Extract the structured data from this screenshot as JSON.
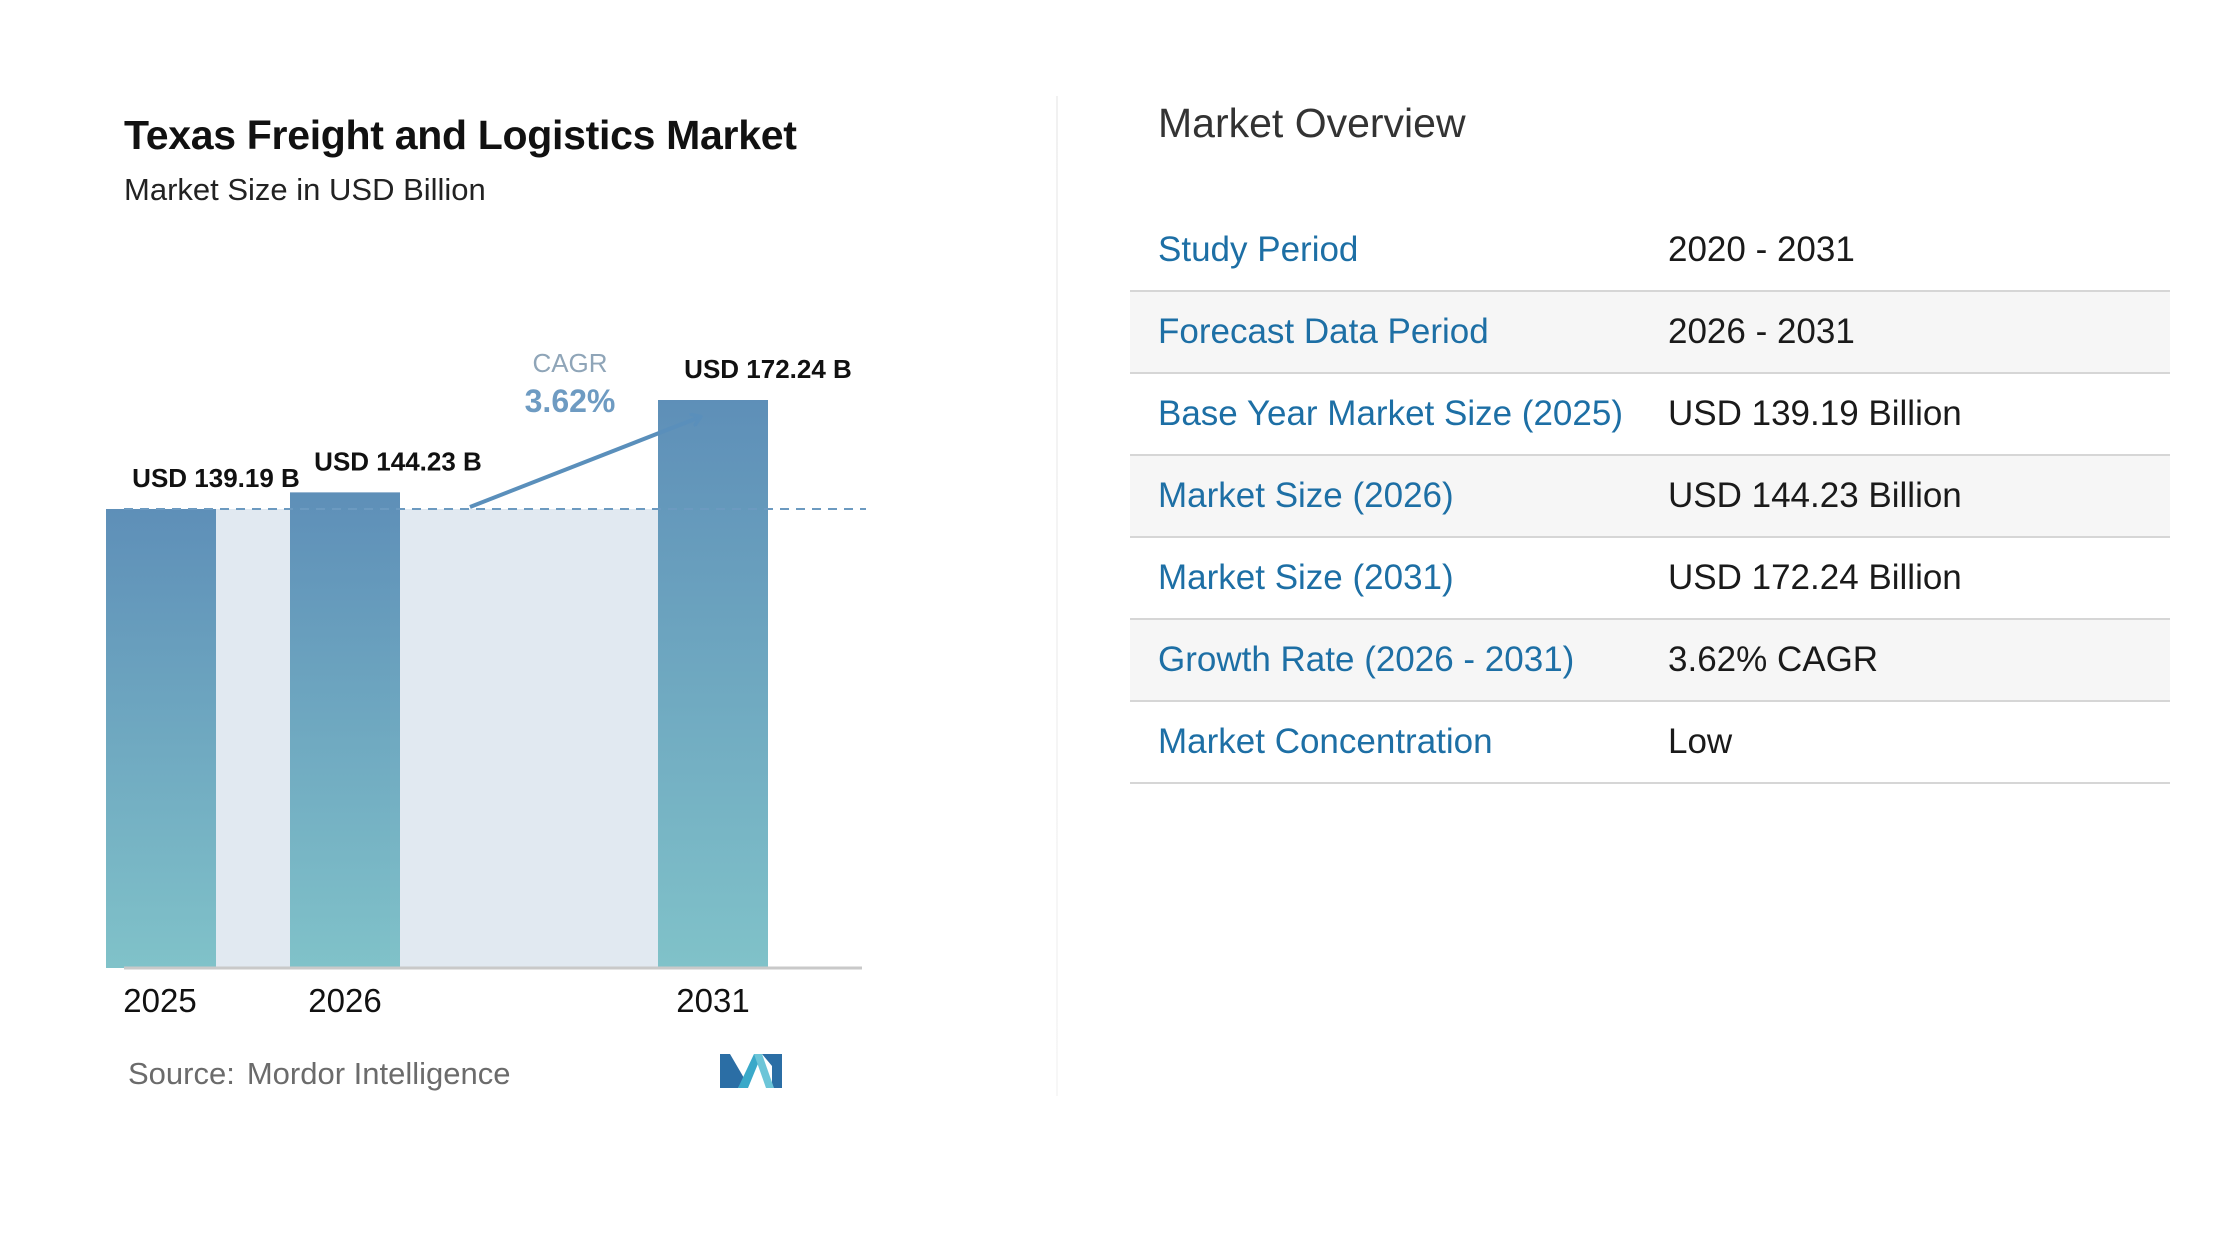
{
  "chart": {
    "title": "Texas Freight and Logistics Market",
    "subtitle": "Market Size in USD Billion",
    "source_label": "Source:",
    "source_name": "Mordor Intelligence",
    "cagr_label": "CAGR",
    "cagr_value": "3.62%"
  },
  "chart_data": {
    "type": "bar",
    "title": "Texas Freight and Logistics Market",
    "subtitle": "Market Size in USD Billion",
    "categories": [
      "2025",
      "2026",
      "2031"
    ],
    "values": [
      139.19,
      144.23,
      172.24
    ],
    "data_labels": [
      "USD 139.19 B",
      "USD 144.23 B",
      "USD 172.24 B"
    ],
    "annotation": {
      "label": "CAGR",
      "value": "3.62%"
    },
    "grid": false,
    "colors": {
      "bar_top": "#5e8fb8",
      "bar_bottom": "#80c2c9",
      "band": "#e1e9f1",
      "accent": "#5a8fbb"
    }
  },
  "overview": {
    "title": "Market Overview",
    "rows": [
      {
        "key": "Study Period",
        "value": "2020 - 2031"
      },
      {
        "key": "Forecast Data Period",
        "value": "2026 - 2031"
      },
      {
        "key": "Base Year Market Size (2025)",
        "value": "USD 139.19 Billion"
      },
      {
        "key": "Market Size (2026)",
        "value": "USD 144.23 Billion"
      },
      {
        "key": "Market Size (2031)",
        "value": "USD 172.24 Billion"
      },
      {
        "key": "Growth Rate (2026 - 2031)",
        "value": "3.62% CAGR"
      },
      {
        "key": "Market Concentration",
        "value": "Low"
      }
    ],
    "key_color": "#1d6fa5"
  }
}
